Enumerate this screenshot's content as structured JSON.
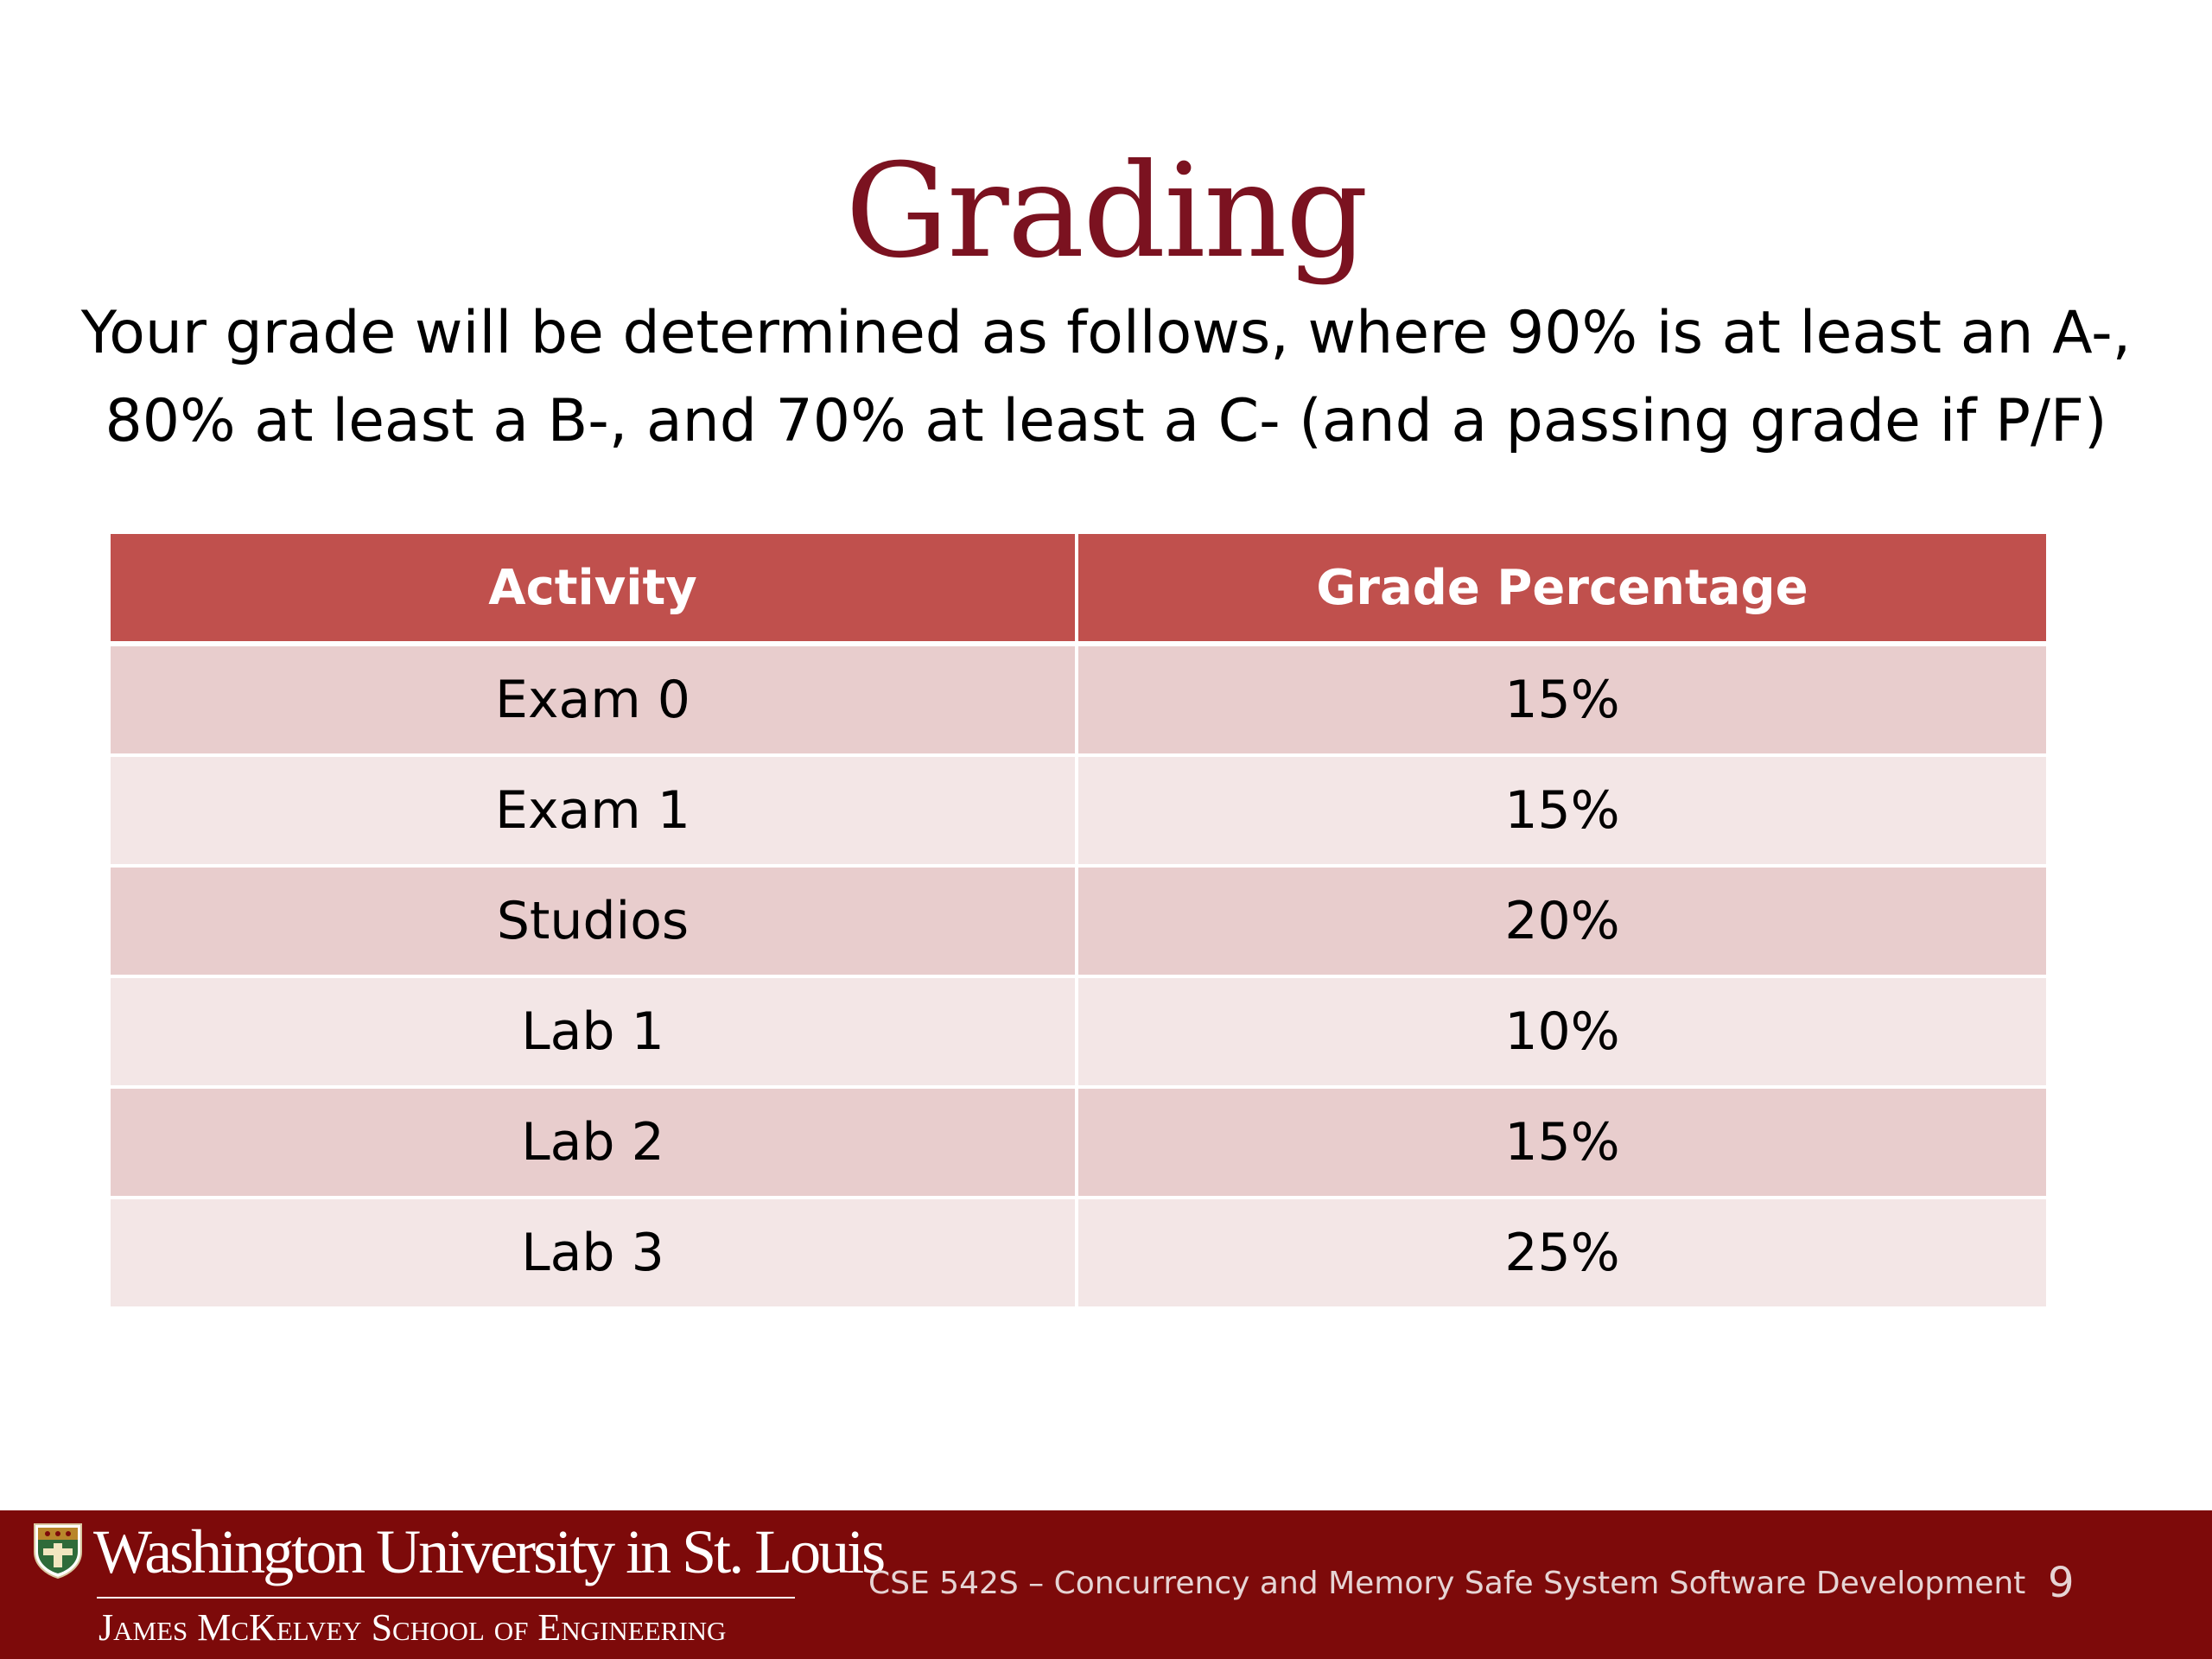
{
  "slide": {
    "title": "Grading",
    "subtitle": "Your grade will be determined as follows, where 90% is at least an A-, 80% at least a B-, and 70% at least a C- (and a passing grade if P/F)"
  },
  "table": {
    "headers": [
      "Activity",
      "Grade Percentage"
    ],
    "rows": [
      [
        "Exam 0",
        "15%"
      ],
      [
        "Exam 1",
        "15%"
      ],
      [
        "Studios",
        "20%"
      ],
      [
        "Lab 1",
        "10%"
      ],
      [
        "Lab 2",
        "15%"
      ],
      [
        "Lab 3",
        "25%"
      ]
    ]
  },
  "footer": {
    "university": "Washington University in St. Louis",
    "school": "James McKelvey School of Engineering",
    "course": "CSE 542S – Concurrency and Memory Safe System Software Development",
    "page_number": "9",
    "logo_icon": "university-shield-icon"
  },
  "colors": {
    "title": "#7b1220",
    "header_fill": "#c0504d",
    "row_dark": "#e8cdcd",
    "row_light": "#f3e6e6",
    "footer_bar": "#7d0a0a"
  }
}
